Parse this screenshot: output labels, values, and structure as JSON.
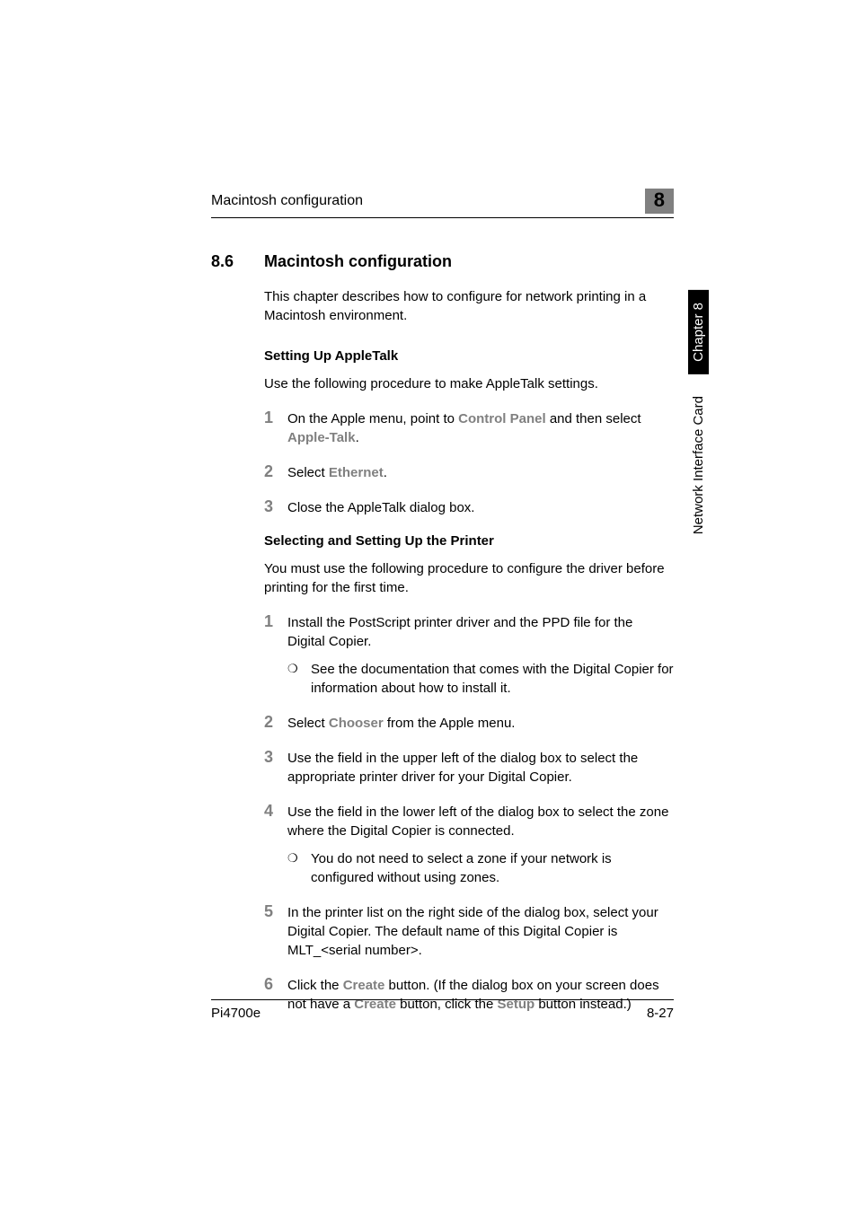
{
  "header": {
    "running_title": "Macintosh configuration",
    "chapter_number": "8"
  },
  "side_tab": {
    "chapter_label": "Chapter 8",
    "chapter_title": "Network Interface Card",
    "tab_bg": "#000000",
    "tab_fg": "#ffffff"
  },
  "section": {
    "number": "8.6",
    "title": "Macintosh configuration",
    "intro": "This chapter describes how to configure for network printing in a Macintosh environment."
  },
  "subsection1": {
    "title": "Setting Up AppleTalk",
    "intro": "Use the following procedure to make AppleTalk settings.",
    "steps": [
      {
        "n": "1",
        "parts": [
          {
            "t": "On the Apple menu, point to "
          },
          {
            "t": "Control Panel",
            "emph": true
          },
          {
            "t": " and then select "
          },
          {
            "t": "Apple-Talk",
            "emph": true
          },
          {
            "t": "."
          }
        ]
      },
      {
        "n": "2",
        "parts": [
          {
            "t": "Select "
          },
          {
            "t": "Ethernet",
            "emph": true
          },
          {
            "t": "."
          }
        ]
      },
      {
        "n": "3",
        "parts": [
          {
            "t": "Close the AppleTalk dialog box."
          }
        ]
      }
    ]
  },
  "subsection2": {
    "title": "Selecting and Setting Up the Printer",
    "intro": "You must use the following procedure to configure the driver before printing for the first time.",
    "steps": [
      {
        "n": "1",
        "parts": [
          {
            "t": "Install the PostScript printer driver and the PPD file for the Digital Copier."
          }
        ],
        "bullet": "See the documentation that comes with the Digital Copier for information about how to install it."
      },
      {
        "n": "2",
        "parts": [
          {
            "t": "Select "
          },
          {
            "t": "Chooser",
            "emph": true
          },
          {
            "t": " from the Apple menu."
          }
        ]
      },
      {
        "n": "3",
        "parts": [
          {
            "t": "Use the field in the upper left of the dialog box to select the appropriate printer driver for your Digital Copier."
          }
        ]
      },
      {
        "n": "4",
        "parts": [
          {
            "t": "Use the field in the lower left of the dialog box to select the zone where the Digital Copier is connected."
          }
        ],
        "bullet": "You do not need to select a zone if your network is configured without using zones."
      },
      {
        "n": "5",
        "parts": [
          {
            "t": "In the printer list on the right side of the dialog box, select your Digital Copier. The default name of this Digital Copier is MLT_<serial number>."
          }
        ]
      },
      {
        "n": "6",
        "parts": [
          {
            "t": "Click the "
          },
          {
            "t": "Create",
            "emph": true
          },
          {
            "t": " button. (If the dialog box on your screen does not have a "
          },
          {
            "t": "Create",
            "emph": true
          },
          {
            "t": " button, click the "
          },
          {
            "t": "Setup",
            "emph": true
          },
          {
            "t": " button instead.)"
          }
        ]
      }
    ]
  },
  "footer": {
    "left": "Pi4700e",
    "right": "8-27"
  },
  "styles": {
    "step_num_color": "#808080",
    "emph_color": "#808080",
    "chapter_box_bg": "#808080",
    "body_font_size": 15,
    "heading_font_size": 18
  }
}
